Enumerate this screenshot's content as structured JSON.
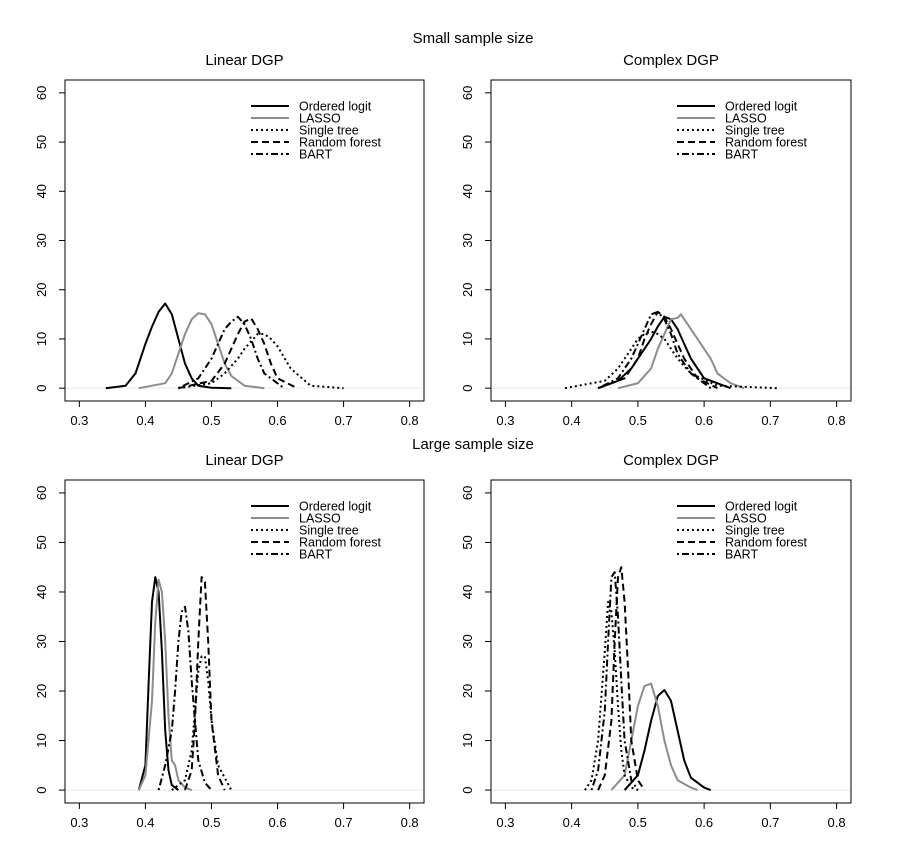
{
  "figure": {
    "section_titles": [
      "Small sample size",
      "Large sample size"
    ]
  },
  "style": {
    "series_styles": [
      {
        "color": "#000000",
        "dash": "solid"
      },
      {
        "color": "#8c8c8c",
        "dash": "solid"
      },
      {
        "color": "#000000",
        "dash": "dotted"
      },
      {
        "color": "#000000",
        "dash": "dashed"
      },
      {
        "color": "#000000",
        "dash": "dotdash"
      }
    ]
  },
  "chart_data": [
    {
      "type": "line",
      "section": "Small sample size",
      "title": "Linear DGP",
      "xlim": [
        0.3,
        0.8
      ],
      "ylim": [
        0,
        60
      ],
      "xticks": [
        0.3,
        0.4,
        0.5,
        0.6,
        0.7,
        0.8
      ],
      "yticks": [
        0,
        10,
        20,
        30,
        40,
        50,
        60
      ],
      "grid": false,
      "legend": "top-right",
      "series": [
        {
          "name": "Ordered logit",
          "x": [
            0.34,
            0.37,
            0.385,
            0.4,
            0.41,
            0.42,
            0.43,
            0.44,
            0.45,
            0.46,
            0.47,
            0.48,
            0.5,
            0.53
          ],
          "y": [
            0,
            0.5,
            3,
            9,
            12.5,
            15.5,
            17.2,
            15,
            10,
            5,
            2,
            0.5,
            0.1,
            0
          ]
        },
        {
          "name": "LASSO",
          "x": [
            0.39,
            0.43,
            0.44,
            0.45,
            0.46,
            0.47,
            0.48,
            0.49,
            0.5,
            0.51,
            0.52,
            0.53,
            0.55,
            0.58
          ],
          "y": [
            0,
            1,
            3,
            7,
            11,
            14,
            15.2,
            15,
            13,
            9,
            5,
            2.5,
            0.5,
            0
          ]
        },
        {
          "name": "Single tree",
          "x": [
            0.45,
            0.5,
            0.52,
            0.54,
            0.55,
            0.56,
            0.57,
            0.58,
            0.59,
            0.6,
            0.62,
            0.65,
            0.7
          ],
          "y": [
            0,
            1,
            3,
            6,
            8,
            9.5,
            11,
            11,
            10,
            8.5,
            4,
            0.5,
            0
          ]
        },
        {
          "name": "Random forest",
          "x": [
            0.45,
            0.5,
            0.52,
            0.53,
            0.54,
            0.55,
            0.56,
            0.57,
            0.58,
            0.59,
            0.6,
            0.63
          ],
          "y": [
            0,
            1.5,
            5,
            8,
            11,
            13.5,
            14.2,
            12,
            9,
            5,
            2,
            0
          ]
        },
        {
          "name": "BART",
          "x": [
            0.45,
            0.48,
            0.5,
            0.51,
            0.52,
            0.53,
            0.54,
            0.55,
            0.56,
            0.57,
            0.58,
            0.61
          ],
          "y": [
            0,
            2,
            6,
            9,
            12,
            13.5,
            14.5,
            13,
            10,
            6,
            3,
            0
          ]
        }
      ]
    },
    {
      "type": "line",
      "section": "Small sample size",
      "title": "Complex DGP",
      "xlim": [
        0.3,
        0.8
      ],
      "ylim": [
        0,
        60
      ],
      "xticks": [
        0.3,
        0.4,
        0.5,
        0.6,
        0.7,
        0.8
      ],
      "yticks": [
        0,
        10,
        20,
        30,
        40,
        50,
        60
      ],
      "grid": false,
      "legend": "top-right",
      "series": [
        {
          "name": "Ordered logit",
          "x": [
            0.44,
            0.47,
            0.49,
            0.51,
            0.52,
            0.53,
            0.54,
            0.55,
            0.56,
            0.57,
            0.58,
            0.6,
            0.64
          ],
          "y": [
            0,
            1.5,
            4,
            8,
            10,
            12.5,
            14.5,
            14,
            12,
            9,
            6,
            2,
            0
          ]
        },
        {
          "name": "LASSO",
          "x": [
            0.47,
            0.5,
            0.52,
            0.53,
            0.54,
            0.55,
            0.56,
            0.565,
            0.57,
            0.58,
            0.59,
            0.6,
            0.61,
            0.62,
            0.64,
            0.66
          ],
          "y": [
            0,
            1,
            4,
            8,
            11,
            14,
            14.3,
            15,
            14,
            12,
            10,
            8,
            6,
            3,
            1,
            0
          ]
        },
        {
          "name": "Single tree",
          "x": [
            0.39,
            0.45,
            0.47,
            0.49,
            0.5,
            0.51,
            0.52,
            0.53,
            0.54,
            0.55,
            0.56,
            0.58,
            0.62,
            0.71
          ],
          "y": [
            0,
            1.5,
            4,
            8,
            10,
            11,
            11.5,
            11,
            10,
            8,
            6,
            3,
            0.5,
            0
          ]
        },
        {
          "name": "Random forest",
          "x": [
            0.44,
            0.48,
            0.5,
            0.51,
            0.52,
            0.53,
            0.54,
            0.55,
            0.56,
            0.57,
            0.59,
            0.62
          ],
          "y": [
            0,
            2,
            6,
            10,
            13,
            15.5,
            14.5,
            12,
            9,
            6,
            2,
            0
          ]
        },
        {
          "name": "BART",
          "x": [
            0.44,
            0.47,
            0.49,
            0.5,
            0.51,
            0.52,
            0.53,
            0.54,
            0.55,
            0.56,
            0.58,
            0.61
          ],
          "y": [
            0,
            2,
            6,
            9,
            12,
            15,
            15.5,
            14,
            11,
            7,
            3,
            0
          ]
        }
      ]
    },
    {
      "type": "line",
      "section": "Large sample size",
      "title": "Linear DGP",
      "xlim": [
        0.3,
        0.8
      ],
      "ylim": [
        0,
        60
      ],
      "xticks": [
        0.3,
        0.4,
        0.5,
        0.6,
        0.7,
        0.8
      ],
      "yticks": [
        0,
        10,
        20,
        30,
        40,
        50,
        60
      ],
      "grid": false,
      "legend": "top-right",
      "series": [
        {
          "name": "Ordered logit",
          "x": [
            0.39,
            0.4,
            0.405,
            0.41,
            0.415,
            0.42,
            0.425,
            0.43,
            0.435,
            0.44,
            0.45
          ],
          "y": [
            0,
            5,
            22,
            38,
            43,
            40,
            28,
            12,
            4,
            1,
            0
          ]
        },
        {
          "name": "LASSO",
          "x": [
            0.39,
            0.4,
            0.41,
            0.415,
            0.42,
            0.425,
            0.43,
            0.435,
            0.44,
            0.445,
            0.45,
            0.46,
            0.47
          ],
          "y": [
            0,
            3,
            18,
            34,
            42.5,
            40,
            30,
            15,
            6,
            5,
            2,
            0.5,
            0
          ]
        },
        {
          "name": "Single tree",
          "x": [
            0.44,
            0.46,
            0.47,
            0.475,
            0.48,
            0.485,
            0.49,
            0.495,
            0.5,
            0.51,
            0.53
          ],
          "y": [
            0,
            2,
            8,
            16,
            24,
            27,
            27,
            22,
            14,
            5,
            0
          ]
        },
        {
          "name": "Random forest",
          "x": [
            0.46,
            0.47,
            0.475,
            0.48,
            0.485,
            0.49,
            0.495,
            0.5,
            0.51,
            0.52
          ],
          "y": [
            0,
            4,
            14,
            30,
            43,
            42,
            30,
            14,
            3,
            0
          ]
        },
        {
          "name": "BART",
          "x": [
            0.42,
            0.43,
            0.44,
            0.445,
            0.45,
            0.455,
            0.46,
            0.465,
            0.47,
            0.475,
            0.48,
            0.49,
            0.5
          ],
          "y": [
            0,
            5,
            12,
            20,
            30,
            36,
            37,
            32,
            22,
            14,
            6,
            1.5,
            0
          ]
        }
      ]
    },
    {
      "type": "line",
      "section": "Large sample size",
      "title": "Complex DGP",
      "xlim": [
        0.3,
        0.8
      ],
      "ylim": [
        0,
        60
      ],
      "xticks": [
        0.3,
        0.4,
        0.5,
        0.6,
        0.7,
        0.8
      ],
      "yticks": [
        0,
        10,
        20,
        30,
        40,
        50,
        60
      ],
      "grid": false,
      "legend": "top-right",
      "series": [
        {
          "name": "Ordered logit",
          "x": [
            0.48,
            0.5,
            0.51,
            0.52,
            0.53,
            0.54,
            0.55,
            0.56,
            0.57,
            0.58,
            0.6,
            0.61
          ],
          "y": [
            0,
            3,
            8,
            14,
            19,
            20.2,
            18,
            12,
            6,
            2.5,
            0.5,
            0
          ]
        },
        {
          "name": "LASSO",
          "x": [
            0.46,
            0.48,
            0.49,
            0.5,
            0.51,
            0.52,
            0.53,
            0.54,
            0.55,
            0.56,
            0.58,
            0.59
          ],
          "y": [
            0,
            3,
            10,
            17,
            21,
            21.5,
            17,
            10,
            5,
            2,
            0.5,
            0
          ]
        },
        {
          "name": "Single tree",
          "x": [
            0.42,
            0.43,
            0.44,
            0.45,
            0.455,
            0.46,
            0.465,
            0.47,
            0.475,
            0.48,
            0.49,
            0.5
          ],
          "y": [
            0,
            2,
            10,
            28,
            38,
            36,
            28,
            17,
            8,
            3,
            0.5,
            0
          ]
        },
        {
          "name": "Random forest",
          "x": [
            0.44,
            0.45,
            0.46,
            0.465,
            0.47,
            0.475,
            0.48,
            0.485,
            0.49,
            0.5,
            0.51
          ],
          "y": [
            0,
            3,
            14,
            30,
            43,
            45,
            38,
            25,
            10,
            2,
            0
          ]
        },
        {
          "name": "BART",
          "x": [
            0.43,
            0.44,
            0.45,
            0.455,
            0.46,
            0.465,
            0.47,
            0.475,
            0.48,
            0.49,
            0.5
          ],
          "y": [
            0,
            4,
            16,
            30,
            43,
            44,
            35,
            22,
            10,
            2,
            0
          ]
        }
      ]
    }
  ]
}
